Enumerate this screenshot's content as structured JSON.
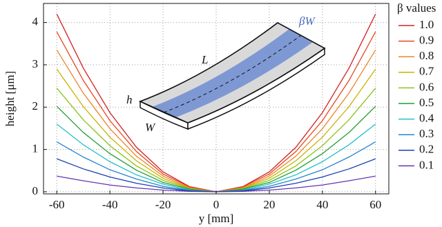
{
  "chart_data": {
    "type": "line",
    "xlabel": "y [mm]",
    "ylabel": "height [μm]",
    "legend_title": "β values",
    "x": [
      -60,
      -50,
      -40,
      -30,
      -20,
      -10,
      0,
      10,
      20,
      30,
      40,
      50,
      60
    ],
    "series": [
      {
        "name": "1.0",
        "color": "#d42020",
        "values": [
          4.2,
          2.92,
          1.87,
          1.05,
          0.47,
          0.12,
          0,
          0.12,
          0.47,
          1.05,
          1.87,
          2.92,
          4.2
        ]
      },
      {
        "name": "0.9",
        "color": "#e6461c",
        "values": [
          3.78,
          2.63,
          1.68,
          0.95,
          0.42,
          0.11,
          0,
          0.11,
          0.42,
          0.95,
          1.68,
          2.63,
          3.78
        ]
      },
      {
        "name": "0.8",
        "color": "#ee8424",
        "values": [
          3.35,
          2.33,
          1.49,
          0.84,
          0.37,
          0.09,
          0,
          0.09,
          0.37,
          0.84,
          1.49,
          2.33,
          3.35
        ]
      },
      {
        "name": "0.7",
        "color": "#c9b200",
        "values": [
          2.9,
          2.01,
          1.29,
          0.73,
          0.32,
          0.08,
          0,
          0.08,
          0.32,
          0.73,
          1.29,
          2.01,
          2.9
        ]
      },
      {
        "name": "0.6",
        "color": "#8cc21a",
        "values": [
          2.45,
          1.7,
          1.09,
          0.61,
          0.27,
          0.07,
          0,
          0.07,
          0.27,
          0.61,
          1.09,
          1.7,
          2.45
        ]
      },
      {
        "name": "0.5",
        "color": "#1f9e2e",
        "values": [
          2.02,
          1.4,
          0.9,
          0.51,
          0.22,
          0.06,
          0,
          0.06,
          0.22,
          0.51,
          0.9,
          1.4,
          2.02
        ]
      },
      {
        "name": "0.4",
        "color": "#22c0c8",
        "values": [
          1.6,
          1.11,
          0.71,
          0.4,
          0.18,
          0.04,
          0,
          0.04,
          0.18,
          0.4,
          0.71,
          1.11,
          1.6
        ]
      },
      {
        "name": "0.3",
        "color": "#2384d2",
        "values": [
          1.18,
          0.82,
          0.52,
          0.3,
          0.13,
          0.03,
          0,
          0.03,
          0.13,
          0.3,
          0.52,
          0.82,
          1.18
        ]
      },
      {
        "name": "0.2",
        "color": "#1a3fae",
        "values": [
          0.78,
          0.54,
          0.35,
          0.2,
          0.09,
          0.02,
          0,
          0.02,
          0.09,
          0.2,
          0.35,
          0.54,
          0.78
        ]
      },
      {
        "name": "0.1",
        "color": "#6432b4",
        "values": [
          0.37,
          0.26,
          0.16,
          0.09,
          0.04,
          0.01,
          0,
          0.01,
          0.04,
          0.09,
          0.16,
          0.26,
          0.37
        ]
      }
    ],
    "xlim": [
      -65,
      65
    ],
    "ylim": [
      -0.05,
      4.45
    ],
    "xticks": [
      -60,
      -40,
      -20,
      0,
      20,
      40,
      60
    ],
    "yticks": [
      0,
      1,
      2,
      3,
      4
    ],
    "grid": true,
    "legend": "outside right",
    "inset_labels": {
      "length": "L",
      "thickness": "h",
      "width": "W",
      "band": "βW"
    }
  }
}
